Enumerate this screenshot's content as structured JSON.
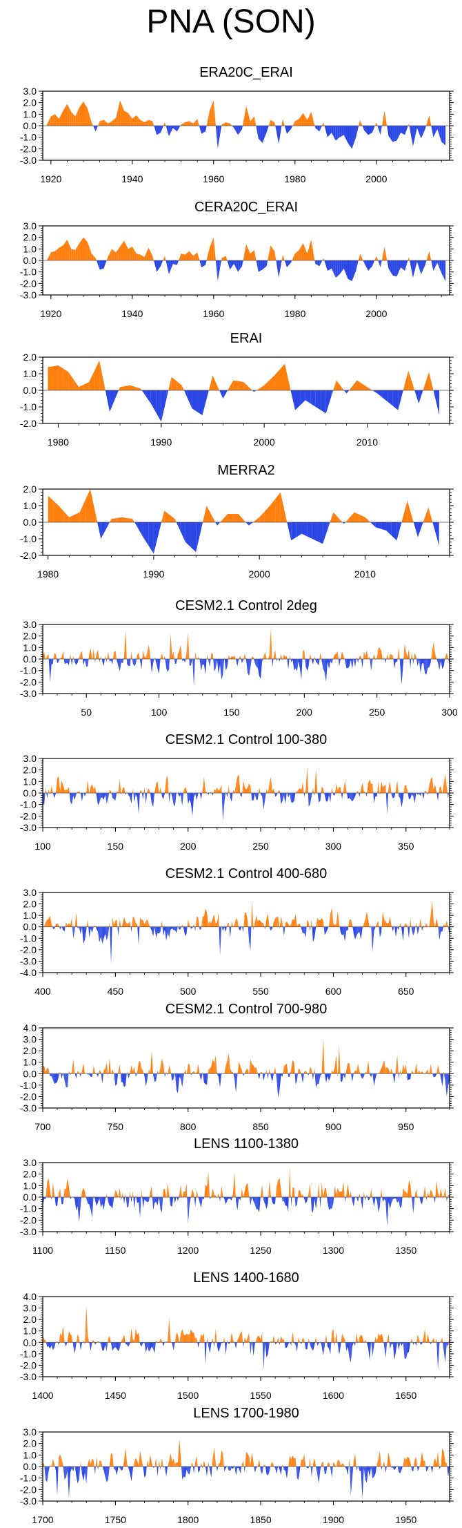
{
  "page": {
    "title": "PNA (SON)"
  },
  "colors": {
    "positive": "#ff7f0e",
    "negative": "#2b47e6",
    "axis": "#000000"
  },
  "chart_data": [
    {
      "type": "area",
      "title": "ERA20C_ERAI",
      "xlabel": "",
      "ylabel": "",
      "xlim": [
        1918,
        2018
      ],
      "ylim": [
        -3,
        3
      ],
      "yticks": [
        -3,
        -2,
        -1,
        0,
        1,
        2,
        3
      ],
      "ytick_labels": [
        "-3.0",
        "-2.0",
        "-1.0",
        "0.0",
        "1.0",
        "2.0",
        "3.0"
      ],
      "xticks": [
        1920,
        1940,
        1960,
        1980,
        2000
      ],
      "xtick_labels": [
        "1920",
        "1940",
        "1960",
        "1980",
        "2000"
      ],
      "x": [
        1919,
        1920,
        1921,
        1922,
        1923,
        1924,
        1925,
        1926,
        1927,
        1928,
        1929,
        1930,
        1931,
        1932,
        1933,
        1934,
        1935,
        1936,
        1937,
        1938,
        1939,
        1940,
        1941,
        1942,
        1943,
        1944,
        1945,
        1946,
        1947,
        1948,
        1949,
        1950,
        1951,
        1952,
        1953,
        1954,
        1955,
        1956,
        1957,
        1958,
        1959,
        1960,
        1961,
        1962,
        1963,
        1964,
        1965,
        1966,
        1967,
        1968,
        1969,
        1970,
        1971,
        1972,
        1973,
        1974,
        1975,
        1976,
        1977,
        1978,
        1979,
        1980,
        1981,
        1982,
        1983,
        1984,
        1985,
        1986,
        1987,
        1988,
        1989,
        1990,
        1991,
        1992,
        1993,
        1994,
        1995,
        1996,
        1997,
        1998,
        1999,
        2000,
        2001,
        2002,
        2003,
        2004,
        2005,
        2006,
        2007,
        2008,
        2009,
        2010,
        2011,
        2012,
        2013,
        2014,
        2015,
        2016,
        2017
      ],
      "values": [
        0.1,
        0.8,
        1.0,
        0.6,
        1.3,
        1.9,
        1.2,
        0.8,
        1.6,
        2.1,
        1.5,
        0.3,
        -0.5,
        0.4,
        0.5,
        0.2,
        0.4,
        0.7,
        2.2,
        1.3,
        1.1,
        0.6,
        0.9,
        0.5,
        0.3,
        0.5,
        0.4,
        -0.8,
        -0.6,
        0.3,
        -0.9,
        -0.2,
        -0.5,
        0.1,
        0.3,
        0.4,
        0.2,
        0.6,
        -0.7,
        -0.5,
        1.3,
        2.2,
        -2.0,
        0.1,
        0.3,
        0.2,
        -0.2,
        -0.8,
        -0.3,
        1.7,
        0.4,
        0.8,
        -1.1,
        -1.5,
        -0.6,
        0.5,
        0.3,
        -1.6,
        0.6,
        -0.7,
        -0.3,
        0.4,
        0.6,
        1.1,
        0.5,
        1.2,
        -0.2,
        -0.5,
        0.3,
        -1.0,
        -0.6,
        -1.3,
        -1.0,
        -0.8,
        -1.5,
        -2.0,
        -1.0,
        0.5,
        -0.4,
        -0.8,
        -0.6,
        0.3,
        -0.8,
        1.3,
        -0.9,
        -1.4,
        -1.3,
        -0.6,
        -0.8,
        0.2,
        -1.8,
        -0.2,
        -1.1,
        -0.3,
        0.9,
        -1.0,
        -0.3,
        -1.4,
        -1.7
      ]
    },
    {
      "type": "area",
      "title": "CERA20C_ERAI",
      "xlabel": "",
      "ylabel": "",
      "xlim": [
        1918,
        2018
      ],
      "ylim": [
        -3,
        3
      ],
      "yticks": [
        -3,
        -2,
        -1,
        0,
        1,
        2,
        3
      ],
      "ytick_labels": [
        "-3.0",
        "-2.0",
        "-1.0",
        "0.0",
        "1.0",
        "2.0",
        "3.0"
      ],
      "xticks": [
        1920,
        1940,
        1960,
        1980,
        2000
      ],
      "xtick_labels": [
        "1920",
        "1940",
        "1960",
        "1980",
        "2000"
      ],
      "x": [
        1919,
        1920,
        1921,
        1922,
        1923,
        1924,
        1925,
        1926,
        1927,
        1928,
        1929,
        1930,
        1931,
        1932,
        1933,
        1934,
        1935,
        1936,
        1937,
        1938,
        1939,
        1940,
        1941,
        1942,
        1943,
        1944,
        1945,
        1946,
        1947,
        1948,
        1949,
        1950,
        1951,
        1952,
        1953,
        1954,
        1955,
        1956,
        1957,
        1958,
        1959,
        1960,
        1961,
        1962,
        1963,
        1964,
        1965,
        1966,
        1967,
        1968,
        1969,
        1970,
        1971,
        1972,
        1973,
        1974,
        1975,
        1976,
        1977,
        1978,
        1979,
        1980,
        1981,
        1982,
        1983,
        1984,
        1985,
        1986,
        1987,
        1988,
        1989,
        1990,
        1991,
        1992,
        1993,
        1994,
        1995,
        1996,
        1997,
        1998,
        1999,
        2000,
        2001,
        2002,
        2003,
        2004,
        2005,
        2006,
        2007,
        2008,
        2009,
        2010,
        2011,
        2012,
        2013,
        2014,
        2015,
        2016,
        2017
      ],
      "values": [
        0.0,
        0.7,
        0.8,
        1.1,
        1.3,
        1.8,
        1.0,
        0.9,
        1.5,
        2.0,
        1.6,
        0.6,
        0.2,
        -0.8,
        -0.7,
        0.3,
        1.0,
        0.7,
        1.2,
        1.7,
        1.0,
        1.2,
        0.6,
        0.5,
        0.3,
        1.1,
        0.4,
        -1.0,
        -0.5,
        0.4,
        -1.2,
        -0.3,
        -0.4,
        0.6,
        0.5,
        0.8,
        0.4,
        0.7,
        -0.6,
        -0.4,
        1.1,
        2.0,
        -1.8,
        0.2,
        0.4,
        -0.8,
        -0.3,
        -1.0,
        -0.5,
        1.4,
        0.6,
        0.9,
        -1.0,
        -0.8,
        -0.5,
        1.3,
        0.8,
        -1.5,
        0.5,
        -0.6,
        -0.2,
        0.6,
        0.9,
        1.5,
        0.6,
        1.8,
        -0.3,
        -0.5,
        0.2,
        -0.9,
        -0.7,
        -1.5,
        -1.2,
        -0.7,
        -1.6,
        -1.8,
        -0.9,
        0.6,
        -0.2,
        -0.9,
        -0.5,
        0.4,
        -0.6,
        1.2,
        -0.7,
        -1.3,
        -1.4,
        -0.6,
        -0.9,
        0.3,
        -1.5,
        -0.1,
        -1.2,
        -0.4,
        0.8,
        -0.9,
        -0.2,
        -1.1,
        -1.8
      ]
    },
    {
      "type": "area",
      "title": "ERAI",
      "xlabel": "",
      "ylabel": "",
      "xlim": [
        1978.5,
        2018
      ],
      "ylim": [
        -2,
        2
      ],
      "yticks": [
        -2,
        -1,
        0,
        1,
        2
      ],
      "ytick_labels": [
        "-2.0",
        "-1.0",
        "0.0",
        "1.0",
        "2.0"
      ],
      "xticks": [
        1980,
        1990,
        2000,
        2010
      ],
      "xtick_labels": [
        "1980",
        "1990",
        "2000",
        "2010"
      ],
      "x": [
        1979,
        1980,
        1981,
        1982,
        1983,
        1984,
        1985,
        1986,
        1987,
        1988,
        1989,
        1990,
        1991,
        1992,
        1993,
        1994,
        1995,
        1996,
        1997,
        1998,
        1999,
        2000,
        2001,
        2002,
        2003,
        2004,
        2005,
        2006,
        2007,
        2008,
        2009,
        2010,
        2011,
        2012,
        2013,
        2014,
        2015,
        2016,
        2017
      ],
      "values": [
        1.4,
        1.5,
        1.1,
        0.2,
        0.5,
        1.8,
        -1.3,
        0.2,
        0.3,
        0.1,
        -0.8,
        -1.9,
        0.8,
        0.3,
        -1.1,
        -1.5,
        0.9,
        -0.5,
        0.6,
        0.5,
        -0.1,
        0.3,
        0.9,
        1.6,
        -1.2,
        -0.6,
        -1.0,
        -1.4,
        0.6,
        -0.2,
        0.6,
        0.2,
        -0.2,
        -0.7,
        -1.2,
        1.2,
        -0.8,
        1.1,
        -1.5
      ]
    },
    {
      "type": "area",
      "title": "MERRA2",
      "xlabel": "",
      "ylabel": "",
      "xlim": [
        1979.5,
        2018
      ],
      "ylim": [
        -2,
        2
      ],
      "yticks": [
        -2,
        -1,
        0,
        1,
        2
      ],
      "ytick_labels": [
        "-2.0",
        "-1.0",
        "0.0",
        "1.0",
        "2.0"
      ],
      "xticks": [
        1980,
        1990,
        2000,
        2010
      ],
      "xtick_labels": [
        "1980",
        "1990",
        "2000",
        "2010"
      ],
      "x": [
        1980,
        1981,
        1982,
        1983,
        1984,
        1985,
        1986,
        1987,
        1988,
        1989,
        1990,
        1991,
        1992,
        1993,
        1994,
        1995,
        1996,
        1997,
        1998,
        1999,
        2000,
        2001,
        2002,
        2003,
        2004,
        2005,
        2006,
        2007,
        2008,
        2009,
        2010,
        2011,
        2012,
        2013,
        2014,
        2015,
        2016,
        2017
      ],
      "values": [
        1.6,
        1.0,
        0.3,
        0.6,
        2.0,
        -1.0,
        0.2,
        0.3,
        0.2,
        -0.9,
        -1.9,
        0.7,
        0.2,
        -1.2,
        -1.8,
        1.0,
        -0.2,
        0.5,
        0.5,
        -0.2,
        0.3,
        1.0,
        1.8,
        -1.1,
        -0.7,
        -1.0,
        -1.3,
        0.6,
        -0.1,
        0.6,
        0.3,
        -0.3,
        -0.5,
        -1.1,
        1.3,
        -0.9,
        0.9,
        -1.4
      ]
    },
    {
      "type": "area",
      "title": "CESM2.1 Control 2deg",
      "xlabel": "",
      "ylabel": "",
      "xlim": [
        20,
        300
      ],
      "ylim": [
        -3,
        3
      ],
      "start": 20,
      "count": 281,
      "seed": 11,
      "amp": 0.9,
      "yticks": [
        -3,
        -2,
        -1,
        0,
        1,
        2,
        3
      ],
      "ytick_labels": [
        "-3.0",
        "-2.0",
        "-1.0",
        "0.0",
        "1.0",
        "2.0",
        "3.0"
      ],
      "xticks": [
        50,
        100,
        150,
        200,
        250,
        300
      ],
      "xtick_labels": [
        "50",
        "100",
        "150",
        "200",
        "250",
        "300"
      ],
      "peaks": [
        [
          77,
          2.5
        ],
        [
          108,
          2.2
        ],
        [
          120,
          2.3
        ],
        [
          177,
          2.7
        ],
        [
          124,
          -2.4
        ],
        [
          267,
          -2.2
        ],
        [
          25,
          -2.0
        ],
        [
          215,
          -2.0
        ]
      ]
    },
    {
      "type": "area",
      "title": "CESM2.1 Control 100-380",
      "xlabel": "",
      "ylabel": "",
      "xlim": [
        100,
        380
      ],
      "ylim": [
        -3,
        3
      ],
      "start": 100,
      "count": 281,
      "seed": 23,
      "amp": 0.9,
      "yticks": [
        -3,
        -2,
        -1,
        0,
        1,
        2,
        3
      ],
      "ytick_labels": [
        "-3.0",
        "-2.0",
        "-1.0",
        "0.0",
        "1.0",
        "2.0",
        "3.0"
      ],
      "xticks": [
        100,
        150,
        200,
        250,
        300,
        350
      ],
      "xtick_labels": [
        "100",
        "150",
        "200",
        "250",
        "300",
        "350"
      ],
      "peaks": [
        [
          282,
          2.3
        ],
        [
          288,
          2.1
        ],
        [
          186,
          1.5
        ],
        [
          224,
          -2.4
        ],
        [
          337,
          -1.9
        ],
        [
          166,
          -1.8
        ],
        [
          203,
          -2.0
        ]
      ]
    },
    {
      "type": "area",
      "title": "CESM2.1 Control 400-680",
      "xlabel": "",
      "ylabel": "",
      "xlim": [
        400,
        680
      ],
      "ylim": [
        -4,
        3
      ],
      "start": 400,
      "count": 281,
      "seed": 37,
      "amp": 0.95,
      "yticks": [
        -4,
        -3,
        -2,
        -1,
        0,
        1,
        2,
        3
      ],
      "ytick_labels": [
        "-4.0",
        "-3.0",
        "-2.0",
        "-1.0",
        "0.0",
        "1.0",
        "2.0",
        "3.0"
      ],
      "xticks": [
        400,
        450,
        500,
        550,
        600,
        650
      ],
      "xtick_labels": [
        "400",
        "450",
        "500",
        "550",
        "600",
        "650"
      ],
      "peaks": [
        [
          447,
          -3.2
        ],
        [
          544,
          2.3
        ],
        [
          668,
          2.3
        ],
        [
          522,
          -2.5
        ],
        [
          627,
          -2.2
        ]
      ]
    },
    {
      "type": "area",
      "title": "CESM2.1 Control 700-980",
      "xlabel": "",
      "ylabel": "",
      "xlim": [
        700,
        980
      ],
      "ylim": [
        -3,
        4
      ],
      "start": 700,
      "count": 281,
      "seed": 41,
      "amp": 0.95,
      "yticks": [
        -3,
        -2,
        -1,
        0,
        1,
        2,
        3,
        4
      ],
      "ytick_labels": [
        "-3.0",
        "-2.0",
        "-1.0",
        "0.0",
        "1.0",
        "2.0",
        "3.0",
        "4.0"
      ],
      "xticks": [
        700,
        750,
        800,
        850,
        900,
        950
      ],
      "xtick_labels": [
        "700",
        "750",
        "800",
        "850",
        "900",
        "950"
      ],
      "peaks": [
        [
          893,
          3.1
        ],
        [
          904,
          2.5
        ],
        [
          775,
          2.0
        ],
        [
          862,
          -2.1
        ],
        [
          978,
          -2.0
        ],
        [
          833,
          -1.7
        ]
      ]
    },
    {
      "type": "area",
      "title": "LENS 1100-1380",
      "xlabel": "",
      "ylabel": "",
      "xlim": [
        1100,
        1380
      ],
      "ylim": [
        -3,
        3
      ],
      "start": 1100,
      "count": 281,
      "seed": 53,
      "amp": 1.0,
      "yticks": [
        -3,
        -2,
        -1,
        0,
        1,
        2,
        3
      ],
      "ytick_labels": [
        "-3.0",
        "-2.0",
        "-1.0",
        "0.0",
        "1.0",
        "2.0",
        "3.0"
      ],
      "xticks": [
        1100,
        1150,
        1200,
        1250,
        1300,
        1350
      ],
      "xtick_labels": [
        "1100",
        "1150",
        "1200",
        "1250",
        "1300",
        "1350"
      ],
      "peaks": [
        [
          1270,
          2.6
        ],
        [
          1214,
          2.2
        ],
        [
          1232,
          2.2
        ],
        [
          1337,
          -2.5
        ],
        [
          1200,
          -2.3
        ],
        [
          1125,
          -2.2
        ]
      ]
    },
    {
      "type": "area",
      "title": "LENS 1400-1680",
      "xlabel": "",
      "ylabel": "",
      "xlim": [
        1400,
        1680
      ],
      "ylim": [
        -3,
        4
      ],
      "start": 1400,
      "count": 281,
      "seed": 67,
      "amp": 0.9,
      "yticks": [
        -3,
        -2,
        -1,
        0,
        1,
        2,
        3,
        4
      ],
      "ytick_labels": [
        "-3.0",
        "-2.0",
        "-1.0",
        "0.0",
        "1.0",
        "2.0",
        "3.0",
        "4.0"
      ],
      "xticks": [
        1400,
        1450,
        1500,
        1550,
        1600,
        1650
      ],
      "xtick_labels": [
        "1400",
        "1450",
        "1500",
        "1550",
        "1600",
        "1650"
      ],
      "peaks": [
        [
          1430,
          3.2
        ],
        [
          1552,
          -2.4
        ],
        [
          1672,
          -2.4
        ],
        [
          1487,
          2.2
        ],
        [
          1512,
          -1.9
        ]
      ]
    },
    {
      "type": "area",
      "title": "LENS 1700-1980",
      "xlabel": "",
      "ylabel": "",
      "xlim": [
        1700,
        1980
      ],
      "ylim": [
        -3,
        3
      ],
      "start": 1700,
      "count": 281,
      "seed": 79,
      "amp": 0.95,
      "yticks": [
        -3,
        -2,
        -1,
        0,
        1,
        2,
        3
      ],
      "ytick_labels": [
        "-3.0",
        "-2.0",
        "-1.0",
        "0.0",
        "1.0",
        "2.0",
        "3.0"
      ],
      "xticks": [
        1700,
        1750,
        1800,
        1850,
        1900,
        1950
      ],
      "xtick_labels": [
        "1700",
        "1750",
        "1800",
        "1850",
        "1900",
        "1950"
      ],
      "peaks": [
        [
          1794,
          2.4
        ],
        [
          1710,
          -2.5
        ],
        [
          1718,
          -2.7
        ],
        [
          1912,
          -2.5
        ],
        [
          1920,
          -2.8
        ],
        [
          1975,
          1.6
        ]
      ]
    }
  ]
}
